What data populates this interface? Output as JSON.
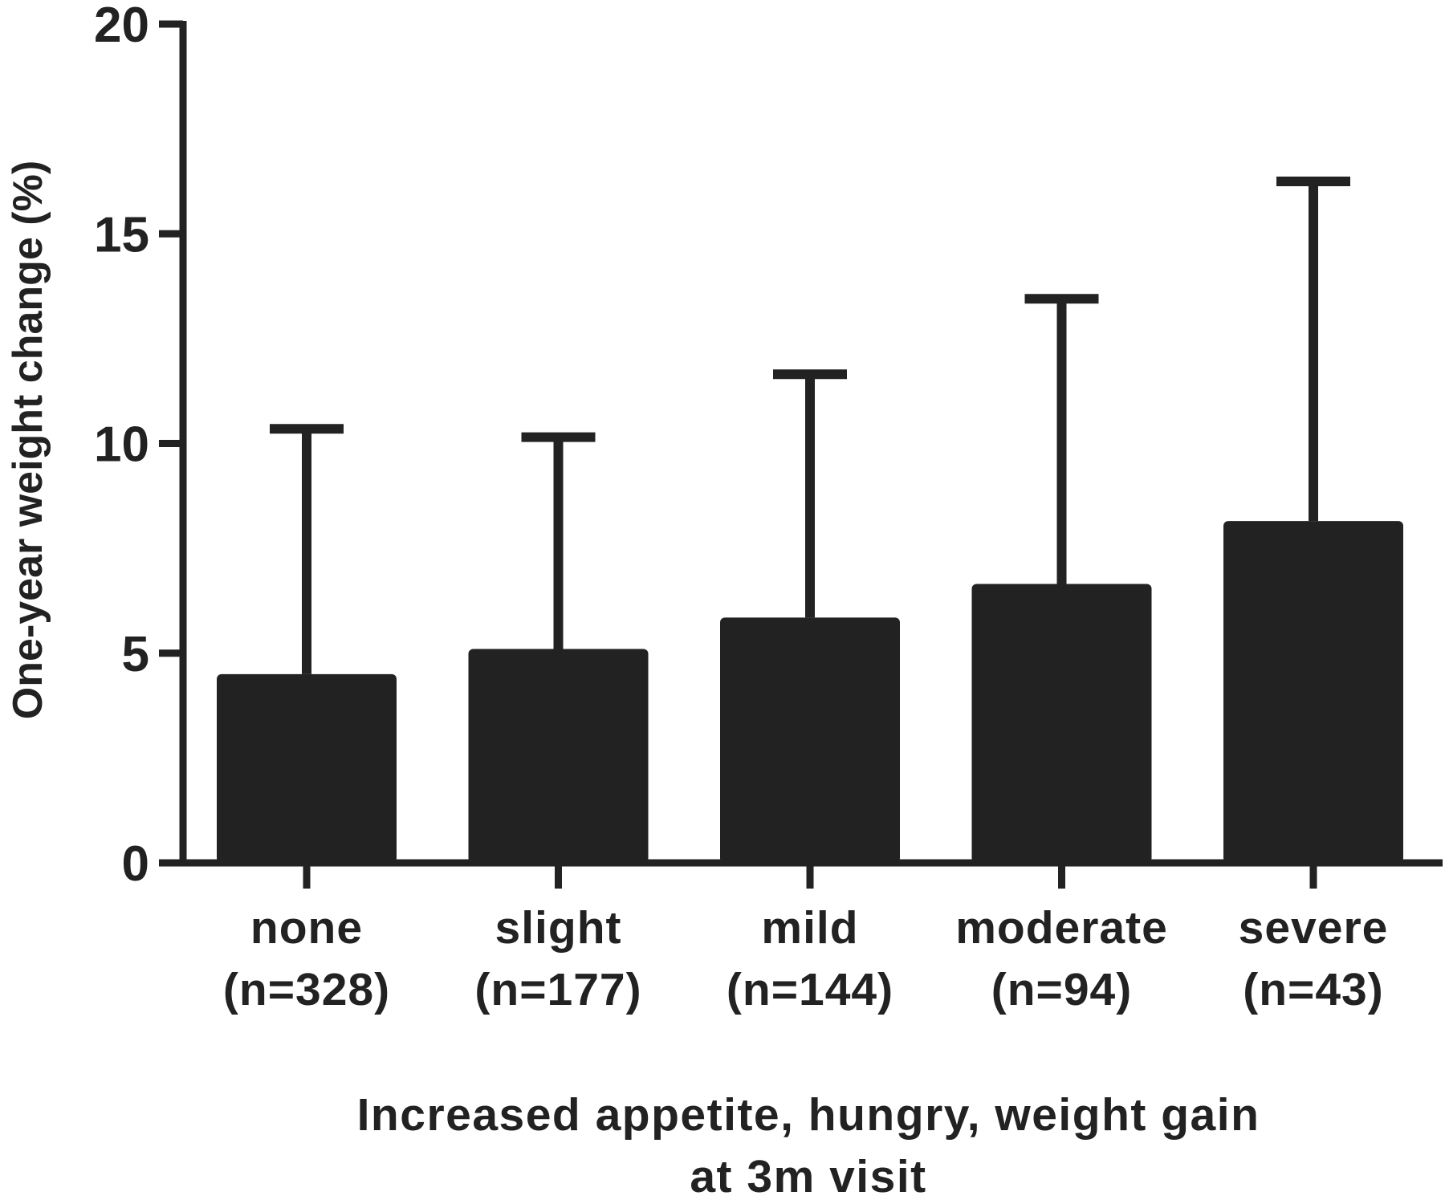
{
  "chart_data": {
    "type": "bar",
    "categories": [
      "none",
      "slight",
      "mild",
      "moderate",
      "severe"
    ],
    "category_counts": [
      "(n=328)",
      "(n=177)",
      "(n=144)",
      "(n=94)",
      "(n=43)"
    ],
    "values": [
      4.5,
      5.1,
      5.85,
      6.65,
      8.15
    ],
    "error_upper": [
      10.35,
      10.15,
      11.65,
      13.45,
      16.25
    ],
    "ylabel": "One-year weight change  (%)",
    "xlabel_lines": [
      "Increased appetite, hungry, weight gain",
      "at 3m visit"
    ],
    "ylim": [
      0,
      20
    ],
    "yticks": [
      0,
      5,
      10,
      15,
      20
    ],
    "grid": false,
    "legend": "none",
    "bar_color": "#222222",
    "axis_color": "#222222"
  }
}
